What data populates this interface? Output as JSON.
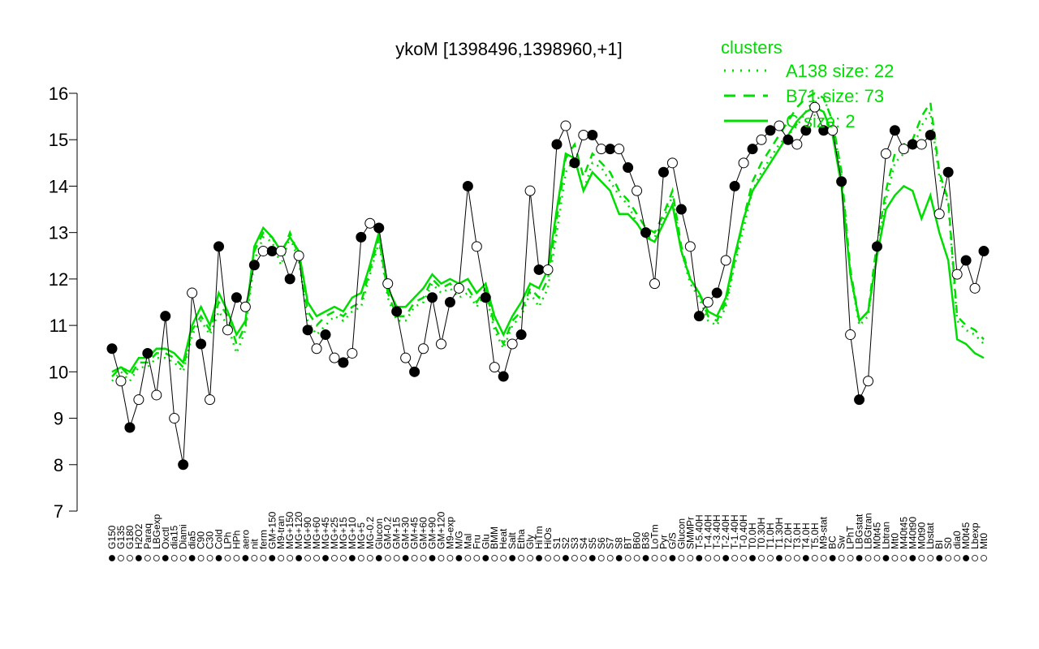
{
  "chart_data": {
    "type": "line",
    "title": "ykoM [1398496,1398960,+1]",
    "ylim": [
      7,
      16
    ],
    "y_ticks": [
      7,
      8,
      9,
      10,
      11,
      12,
      13,
      14,
      15,
      16
    ],
    "x_labels": [
      "G150",
      "G135",
      "G180",
      "H2O2",
      "Paraq",
      "LBGexp",
      "Oxctl",
      "dia15",
      "Diami",
      "dia5",
      "C90",
      "C30",
      "Cold",
      "LPh",
      "HPh",
      "aero",
      "nit",
      "ferm",
      "GM+150",
      "M9-tran",
      "MG+150",
      "MG+120",
      "MG+90",
      "MG+60",
      "MG+45",
      "MG+25",
      "MG+15",
      "MG+10",
      "MG+5",
      "MG-0.2",
      "Glucon",
      "GM-0.2",
      "GM+15",
      "GM+30",
      "GM+45",
      "GM+60",
      "GM+90",
      "GM+120",
      "M9-exp",
      "M/G",
      "Mal",
      "Fru",
      "Glu",
      "BMM",
      "Heat",
      "Salt",
      "Etha",
      "Gly",
      "HiTm",
      "HiOs",
      "S1",
      "S2",
      "S3",
      "S4",
      "S5",
      "S6",
      "S7",
      "S8",
      "BT",
      "B60",
      "B36",
      "LoTm",
      "Pyr",
      "G/S",
      "Glucon",
      "SMMPr",
      "T-5.40H",
      "T-4.40H",
      "T-3.40H",
      "T-2.40H",
      "T-1.40H",
      "T-0.40H",
      "T0.0H",
      "T0.30H",
      "T1.0H",
      "T1.30H",
      "T2.0H",
      "T3.0H",
      "T4.0H",
      "T5.0H",
      "M9-stat",
      "BC",
      "Sw",
      "LPhT",
      "LBGstat",
      "LBGtran",
      "M0t45",
      "Lbtran",
      "Mt0",
      "M40t45",
      "M40t90",
      "M0t90",
      "Lbstat",
      "BI",
      "S0",
      "dia0",
      "M0t45",
      "Lbexp",
      "Mt0"
    ],
    "clusters_title": "clusters",
    "series": [
      {
        "name": "A138 size: 22",
        "style": "dotted",
        "color": "#00dd00",
        "values": [
          9.8,
          10.0,
          9.8,
          10.1,
          10.1,
          10.3,
          10.3,
          10.2,
          10.0,
          10.8,
          11.1,
          10.8,
          11.3,
          11.0,
          10.4,
          10.9,
          12.4,
          12.9,
          12.8,
          12.3,
          12.9,
          12.4,
          11.1,
          10.8,
          11.0,
          11.2,
          11.1,
          11.3,
          11.4,
          12.1,
          12.8,
          11.6,
          11.1,
          11.1,
          11.4,
          11.5,
          11.9,
          11.7,
          11.8,
          11.6,
          11.7,
          11.4,
          11.7,
          10.9,
          10.5,
          11.0,
          11.2,
          11.7,
          11.4,
          11.8,
          13.0,
          14.3,
          14.6,
          13.9,
          14.5,
          14.4,
          14.1,
          13.8,
          13.6,
          13.2,
          12.9,
          12.9,
          13.3,
          13.8,
          12.6,
          11.9,
          11.6,
          11.1,
          11.0,
          11.4,
          12.3,
          13.1,
          13.9,
          14.3,
          14.6,
          14.9,
          15.1,
          15.3,
          15.6,
          15.9,
          15.9,
          15.4,
          14.2,
          12.1,
          11.0,
          11.2,
          12.6,
          13.7,
          14.5,
          14.7,
          14.8,
          15.3,
          15.6,
          14.2,
          13.6,
          11.1,
          10.9,
          10.8,
          10.6
        ]
      },
      {
        "name": "B71 size: 73",
        "style": "dashed",
        "color": "#00dd00",
        "values": [
          9.9,
          10.1,
          9.9,
          10.2,
          10.2,
          10.4,
          10.4,
          10.3,
          10.1,
          10.9,
          11.2,
          10.9,
          11.5,
          11.2,
          10.6,
          11.0,
          12.6,
          13.0,
          12.9,
          12.5,
          13.0,
          12.5,
          11.3,
          11.0,
          11.2,
          11.3,
          11.2,
          11.4,
          11.5,
          12.2,
          12.9,
          11.7,
          11.2,
          11.2,
          11.5,
          11.6,
          12.0,
          11.8,
          11.9,
          11.7,
          11.8,
          11.5,
          11.8,
          11.0,
          10.6,
          11.1,
          11.3,
          11.8,
          11.6,
          12.0,
          13.3,
          14.6,
          14.9,
          14.2,
          14.7,
          14.5,
          14.3,
          13.9,
          13.7,
          13.4,
          13.1,
          13.0,
          13.4,
          13.9,
          12.7,
          12.0,
          11.7,
          11.2,
          11.1,
          11.5,
          12.4,
          13.3,
          14.1,
          14.5,
          14.8,
          15.1,
          15.4,
          15.7,
          15.9,
          16.0,
          15.9,
          15.4,
          14.3,
          12.2,
          11.1,
          11.3,
          12.8,
          13.9,
          14.7,
          14.9,
          15.0,
          15.5,
          15.8,
          14.3,
          13.7,
          11.2,
          11.0,
          10.9,
          10.7
        ]
      },
      {
        "name": "C size: 2",
        "style": "solid",
        "color": "#00dd00",
        "values": [
          10.0,
          10.1,
          10.0,
          10.3,
          10.3,
          10.5,
          10.5,
          10.4,
          10.2,
          11.0,
          11.4,
          11.0,
          11.7,
          11.3,
          10.8,
          11.1,
          12.7,
          13.1,
          12.9,
          12.6,
          12.9,
          12.6,
          11.5,
          11.2,
          11.3,
          11.4,
          11.3,
          11.6,
          11.7,
          12.3,
          13.0,
          11.8,
          11.4,
          11.4,
          11.6,
          11.8,
          12.1,
          11.9,
          12.0,
          11.9,
          12.0,
          11.7,
          11.9,
          11.2,
          10.8,
          11.2,
          11.5,
          11.9,
          11.8,
          12.2,
          13.5,
          14.7,
          14.6,
          13.9,
          14.3,
          14.1,
          13.9,
          13.4,
          13.4,
          13.2,
          12.9,
          12.8,
          13.2,
          13.6,
          12.6,
          12.0,
          11.7,
          11.3,
          11.2,
          11.6,
          12.5,
          13.3,
          13.9,
          14.2,
          14.5,
          14.8,
          15.1,
          15.4,
          15.6,
          15.7,
          15.6,
          15.1,
          14.0,
          12.1,
          11.1,
          11.3,
          12.5,
          13.5,
          13.8,
          14.0,
          13.9,
          13.3,
          13.8,
          13.0,
          12.4,
          10.7,
          10.6,
          10.4,
          10.3
        ]
      },
      {
        "name": "ykoM",
        "style": "black-points",
        "color": "#000000",
        "values": [
          10.5,
          9.8,
          8.8,
          9.4,
          10.4,
          9.5,
          11.2,
          9.0,
          8.0,
          11.7,
          10.6,
          9.4,
          12.7,
          10.9,
          11.6,
          11.4,
          12.3,
          12.6,
          12.6,
          12.6,
          12.0,
          12.5,
          10.9,
          10.5,
          10.8,
          10.3,
          10.2,
          10.4,
          12.9,
          13.2,
          13.1,
          11.9,
          11.3,
          10.3,
          10.0,
          10.5,
          11.6,
          10.6,
          11.5,
          11.8,
          14.0,
          12.7,
          11.6,
          10.1,
          9.9,
          10.6,
          10.8,
          13.9,
          12.2,
          12.2,
          14.9,
          15.3,
          14.5,
          15.1,
          15.1,
          14.8,
          14.8,
          14.8,
          14.4,
          13.9,
          13.0,
          11.9,
          14.3,
          14.5,
          13.5,
          12.7,
          11.2,
          11.5,
          11.7,
          12.4,
          14.0,
          14.5,
          14.8,
          15.0,
          15.2,
          15.3,
          15.0,
          14.9,
          15.2,
          15.7,
          15.2,
          15.2,
          14.1,
          10.8,
          9.4,
          9.8,
          12.7,
          14.7,
          15.2,
          14.8,
          14.9,
          14.9,
          15.1,
          13.4,
          14.3,
          12.1,
          12.4,
          11.8,
          12.6
        ]
      }
    ],
    "legend": {
      "placement": "top-right"
    }
  }
}
